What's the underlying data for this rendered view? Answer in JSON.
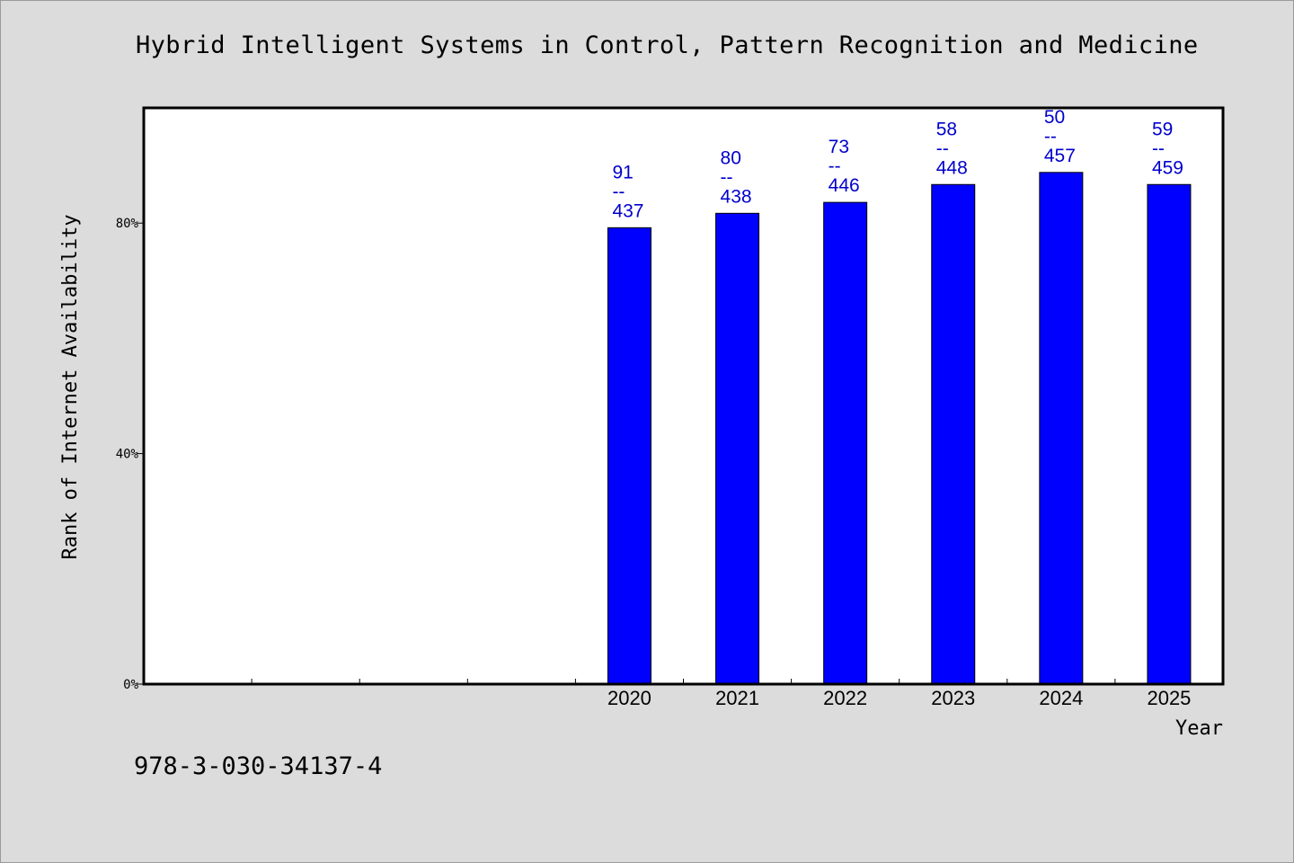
{
  "title": "Hybrid Intelligent Systems in Control, Pattern Recognition and Medicine",
  "isbn": "978-3-030-34137-4",
  "chart_data": {
    "type": "bar",
    "title": "Hybrid Intelligent Systems in Control, Pattern Recognition and Medicine",
    "xlabel": "Year",
    "ylabel": "Rank of Internet Availability",
    "categories": [
      "",
      "",
      "",
      "",
      "2020",
      "2021",
      "2022",
      "2023",
      "2024",
      "2025"
    ],
    "series": [
      {
        "values": [
          null,
          null,
          null,
          null,
          79.2,
          81.7,
          83.6,
          86.7,
          88.8,
          86.7
        ],
        "labels": [
          "",
          "",
          "",
          "",
          "91\n--\n437",
          "80\n--\n438",
          "73\n--\n446",
          "58\n--\n448",
          "50\n--\n457",
          "59\n--\n459"
        ]
      }
    ],
    "yticks": [
      0,
      40,
      80
    ],
    "ytick_labels": [
      "0%",
      "40%",
      "80%"
    ],
    "ylim": [
      0,
      100
    ],
    "grid": false,
    "legend": "none",
    "colors": {
      "bar": "#0000ff",
      "label": "#0000cc",
      "plot_bg": "#ffffff",
      "page_bg": "#dcdcdc"
    }
  }
}
